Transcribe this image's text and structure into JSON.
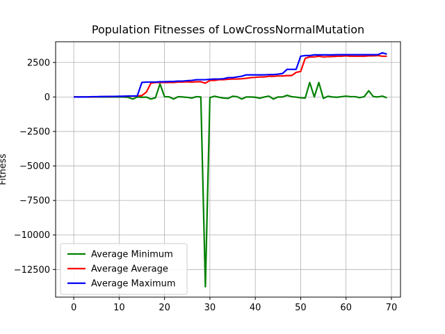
{
  "chart_data": {
    "type": "line",
    "title": "Population Fitnesses of LowCrossNormalMutation",
    "xlabel": "",
    "ylabel": "Fitness",
    "xlim": [
      -4,
      72
    ],
    "ylim": [
      -14500,
      4000
    ],
    "xticks": [
      0,
      10,
      20,
      30,
      40,
      50,
      60,
      70
    ],
    "yticks": [
      -12500,
      -10000,
      -7500,
      -5000,
      -2500,
      0,
      2500
    ],
    "ytick_labels": [
      "−12500",
      "−10000",
      "−7500",
      "−5000",
      "−2500",
      "0",
      "2500"
    ],
    "grid": true,
    "legend_position": "lower-left",
    "series": [
      {
        "name": "Average Minimum",
        "color": "#008000",
        "x": [
          0,
          1,
          2,
          3,
          4,
          5,
          6,
          7,
          8,
          9,
          10,
          11,
          12,
          13,
          14,
          15,
          16,
          17,
          18,
          19,
          20,
          21,
          22,
          23,
          24,
          25,
          26,
          27,
          28,
          29,
          30,
          31,
          32,
          33,
          34,
          35,
          36,
          37,
          38,
          39,
          40,
          41,
          42,
          43,
          44,
          45,
          46,
          47,
          48,
          49,
          50,
          51,
          52,
          53,
          54,
          55,
          56,
          57,
          58,
          59,
          60,
          61,
          62,
          63,
          64,
          65,
          66,
          67,
          68,
          69
        ],
        "values": [
          0,
          0,
          0,
          0,
          0,
          0,
          0,
          0,
          0,
          0,
          0,
          0,
          -30,
          -150,
          0,
          -20,
          -10,
          -150,
          -60,
          950,
          20,
          10,
          -150,
          20,
          0,
          -30,
          -80,
          20,
          0,
          -13750,
          -50,
          50,
          -20,
          -80,
          -100,
          50,
          20,
          -150,
          0,
          0,
          -20,
          -90,
          0,
          60,
          -150,
          0,
          0,
          120,
          20,
          -10,
          -60,
          -80,
          1050,
          0,
          1050,
          -100,
          50,
          0,
          -20,
          20,
          60,
          20,
          20,
          -50,
          20,
          450,
          30,
          0,
          60,
          -60
        ]
      },
      {
        "name": "Average Average",
        "color": "#ff0000",
        "x": [
          0,
          1,
          2,
          3,
          4,
          5,
          6,
          7,
          8,
          9,
          10,
          11,
          12,
          13,
          14,
          15,
          16,
          17,
          18,
          19,
          20,
          21,
          22,
          23,
          24,
          25,
          26,
          27,
          28,
          29,
          30,
          31,
          32,
          33,
          34,
          35,
          36,
          37,
          38,
          39,
          40,
          41,
          42,
          43,
          44,
          45,
          46,
          47,
          48,
          49,
          50,
          51,
          52,
          53,
          54,
          55,
          56,
          57,
          58,
          59,
          60,
          61,
          62,
          63,
          64,
          65,
          66,
          67,
          68,
          69
        ],
        "values": [
          0,
          0,
          0,
          0,
          10,
          10,
          20,
          30,
          30,
          40,
          40,
          50,
          60,
          60,
          70,
          100,
          350,
          1000,
          1050,
          1050,
          1050,
          1050,
          1050,
          1080,
          1080,
          1100,
          1080,
          1100,
          1100,
          1000,
          1200,
          1200,
          1250,
          1250,
          1280,
          1300,
          1300,
          1320,
          1350,
          1400,
          1420,
          1450,
          1450,
          1500,
          1500,
          1520,
          1520,
          1550,
          1550,
          1780,
          1850,
          2800,
          2900,
          2900,
          2950,
          2900,
          2920,
          2930,
          2950,
          2950,
          2980,
          2950,
          2950,
          2950,
          2950,
          2980,
          2980,
          3000,
          2950,
          2950
        ]
      },
      {
        "name": "Average Maximum",
        "color": "#0000ff",
        "x": [
          0,
          1,
          2,
          3,
          4,
          5,
          6,
          7,
          8,
          9,
          10,
          11,
          12,
          13,
          14,
          15,
          16,
          17,
          18,
          19,
          20,
          21,
          22,
          23,
          24,
          25,
          26,
          27,
          28,
          29,
          30,
          31,
          32,
          33,
          34,
          35,
          36,
          37,
          38,
          39,
          40,
          41,
          42,
          43,
          44,
          45,
          46,
          47,
          48,
          49,
          50,
          51,
          52,
          53,
          54,
          55,
          56,
          57,
          58,
          59,
          60,
          61,
          62,
          63,
          64,
          65,
          66,
          67,
          68,
          69
        ],
        "values": [
          0,
          0,
          0,
          0,
          20,
          20,
          30,
          30,
          40,
          40,
          50,
          50,
          70,
          70,
          80,
          1050,
          1080,
          1080,
          1080,
          1100,
          1100,
          1120,
          1120,
          1150,
          1150,
          1180,
          1200,
          1250,
          1250,
          1250,
          1280,
          1300,
          1300,
          1320,
          1400,
          1400,
          1450,
          1500,
          1600,
          1600,
          1600,
          1600,
          1600,
          1620,
          1620,
          1650,
          1700,
          2000,
          2000,
          2000,
          2950,
          3000,
          3000,
          3050,
          3050,
          3050,
          3050,
          3050,
          3060,
          3060,
          3060,
          3060,
          3060,
          3060,
          3060,
          3060,
          3060,
          3060,
          3200,
          3100
        ]
      }
    ]
  }
}
